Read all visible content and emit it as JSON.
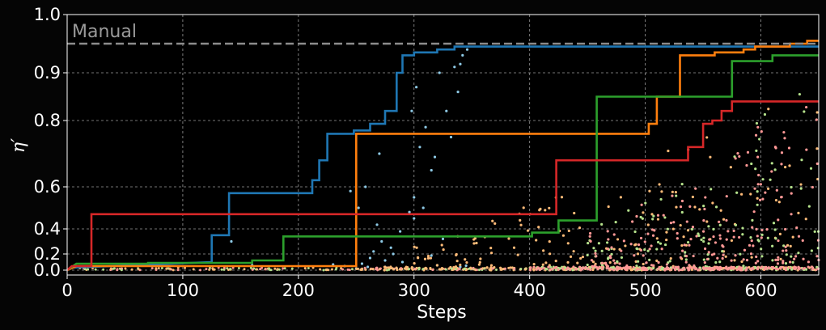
{
  "chart_data": {
    "type": "line",
    "title": "",
    "xlabel": "Steps",
    "ylabel": "η′",
    "xlim": [
      0,
      650
    ],
    "ylim": [
      0.0,
      1.0
    ],
    "yscale": "power-like (compressed near 0)",
    "x_ticks": [
      0,
      100,
      200,
      300,
      400,
      500,
      600
    ],
    "y_ticks": [
      0.0,
      0.2,
      0.4,
      0.6,
      0.8,
      0.9,
      1.0
    ],
    "x_tick_labels": [
      "0",
      "100",
      "200",
      "300",
      "400",
      "500",
      "600"
    ],
    "y_tick_labels": [
      "0.0",
      "0.2",
      "0.4",
      "0.6",
      "0.8",
      "0.9",
      "1.0"
    ],
    "grid": true,
    "reference_line": {
      "label": "Manual",
      "value": 0.95,
      "style": "dashed",
      "color": "#8c8c8c"
    },
    "series": [
      {
        "color": "#1f77b4",
        "points_color": "#8ecae6",
        "steps": [
          [
            0,
            0.0
          ],
          [
            3,
            0.03
          ],
          [
            125,
            0.1
          ],
          [
            125,
            0.35
          ],
          [
            140,
            0.35
          ],
          [
            140,
            0.57
          ],
          [
            212,
            0.57
          ],
          [
            212,
            0.62
          ],
          [
            218,
            0.62
          ],
          [
            218,
            0.68
          ],
          [
            225,
            0.68
          ],
          [
            225,
            0.76
          ],
          [
            248,
            0.76
          ],
          [
            248,
            0.77
          ],
          [
            262,
            0.77
          ],
          [
            262,
            0.79
          ],
          [
            275,
            0.79
          ],
          [
            275,
            0.82
          ],
          [
            285,
            0.82
          ],
          [
            285,
            0.9
          ],
          [
            290,
            0.9
          ],
          [
            290,
            0.93
          ],
          [
            300,
            0.93
          ],
          [
            300,
            0.935
          ],
          [
            320,
            0.935
          ],
          [
            320,
            0.94
          ],
          [
            335,
            0.94
          ],
          [
            335,
            0.945
          ],
          [
            650,
            0.945
          ]
        ],
        "scatter": [
          [
            255,
            0.08
          ],
          [
            262,
            0.15
          ],
          [
            275,
            0.12
          ],
          [
            282,
            0.2
          ],
          [
            290,
            0.1
          ],
          [
            300,
            0.45
          ],
          [
            245,
            0.58
          ],
          [
            252,
            0.5
          ],
          [
            258,
            0.6
          ],
          [
            268,
            0.42
          ],
          [
            272,
            0.3
          ],
          [
            288,
            0.38
          ],
          [
            296,
            0.48
          ],
          [
            308,
            0.5
          ],
          [
            315,
            0.18
          ],
          [
            325,
            0.32
          ],
          [
            270,
            0.7
          ],
          [
            305,
            0.72
          ],
          [
            318,
            0.69
          ],
          [
            332,
            0.75
          ],
          [
            310,
            0.78
          ],
          [
            328,
            0.82
          ],
          [
            338,
            0.86
          ],
          [
            302,
            0.87
          ],
          [
            322,
            0.9
          ],
          [
            335,
            0.91
          ],
          [
            342,
            0.93
          ],
          [
            346,
            0.94
          ],
          [
            340,
            0.915
          ],
          [
            298,
            0.82
          ],
          [
            280,
            0.25
          ],
          [
            260,
            0.04
          ],
          [
            340,
            0.04
          ],
          [
            240,
            0.05
          ],
          [
            230,
            0.07
          ],
          [
            320,
            0.06
          ],
          [
            345,
            0.055
          ],
          [
            142,
            0.3
          ],
          [
            160,
            0.06
          ],
          [
            200,
            0.05
          ],
          [
            285,
            0.02
          ],
          [
            250,
            0.02
          ],
          [
            315,
            0.65
          ],
          [
            300,
            0.55
          ],
          [
            275,
            0.04
          ],
          [
            265,
            0.22
          ]
        ]
      },
      {
        "color": "#ff7f0e",
        "points_color": "#ffbb78",
        "steps": [
          [
            0,
            0.0
          ],
          [
            8,
            0.05
          ],
          [
            250,
            0.05
          ],
          [
            250,
            0.08
          ],
          [
            250,
            0.76
          ],
          [
            503,
            0.76
          ],
          [
            503,
            0.79
          ],
          [
            510,
            0.79
          ],
          [
            510,
            0.85
          ],
          [
            530,
            0.85
          ],
          [
            530,
            0.93
          ],
          [
            560,
            0.93
          ],
          [
            560,
            0.935
          ],
          [
            585,
            0.935
          ],
          [
            585,
            0.94
          ],
          [
            595,
            0.94
          ],
          [
            595,
            0.945
          ],
          [
            625,
            0.945
          ],
          [
            625,
            0.95
          ],
          [
            640,
            0.95
          ],
          [
            640,
            0.955
          ],
          [
            650,
            0.955
          ]
        ],
        "scatter": []
      },
      {
        "color": "#2ca02c",
        "points_color": "#b5e28c",
        "steps": [
          [
            0,
            0.0
          ],
          [
            8,
            0.08
          ],
          [
            70,
            0.08
          ],
          [
            70,
            0.09
          ],
          [
            160,
            0.09
          ],
          [
            160,
            0.12
          ],
          [
            187,
            0.12
          ],
          [
            187,
            0.34
          ],
          [
            402,
            0.34
          ],
          [
            402,
            0.37
          ],
          [
            425,
            0.37
          ],
          [
            425,
            0.44
          ],
          [
            458,
            0.44
          ],
          [
            458,
            0.85
          ],
          [
            575,
            0.85
          ],
          [
            575,
            0.92
          ],
          [
            610,
            0.92
          ],
          [
            610,
            0.93
          ],
          [
            650,
            0.93
          ]
        ],
        "scatter": []
      },
      {
        "color": "#d62728",
        "points_color": "#ff9896",
        "steps": [
          [
            0,
            0.0
          ],
          [
            4,
            0.05
          ],
          [
            21,
            0.05
          ],
          [
            21,
            0.47
          ],
          [
            423,
            0.47
          ],
          [
            423,
            0.68
          ],
          [
            537,
            0.68
          ],
          [
            537,
            0.72
          ],
          [
            550,
            0.72
          ],
          [
            550,
            0.79
          ],
          [
            558,
            0.79
          ],
          [
            558,
            0.8
          ],
          [
            566,
            0.8
          ],
          [
            566,
            0.82
          ],
          [
            575,
            0.82
          ],
          [
            575,
            0.84
          ],
          [
            650,
            0.84
          ]
        ],
        "scatter": []
      }
    ]
  }
}
